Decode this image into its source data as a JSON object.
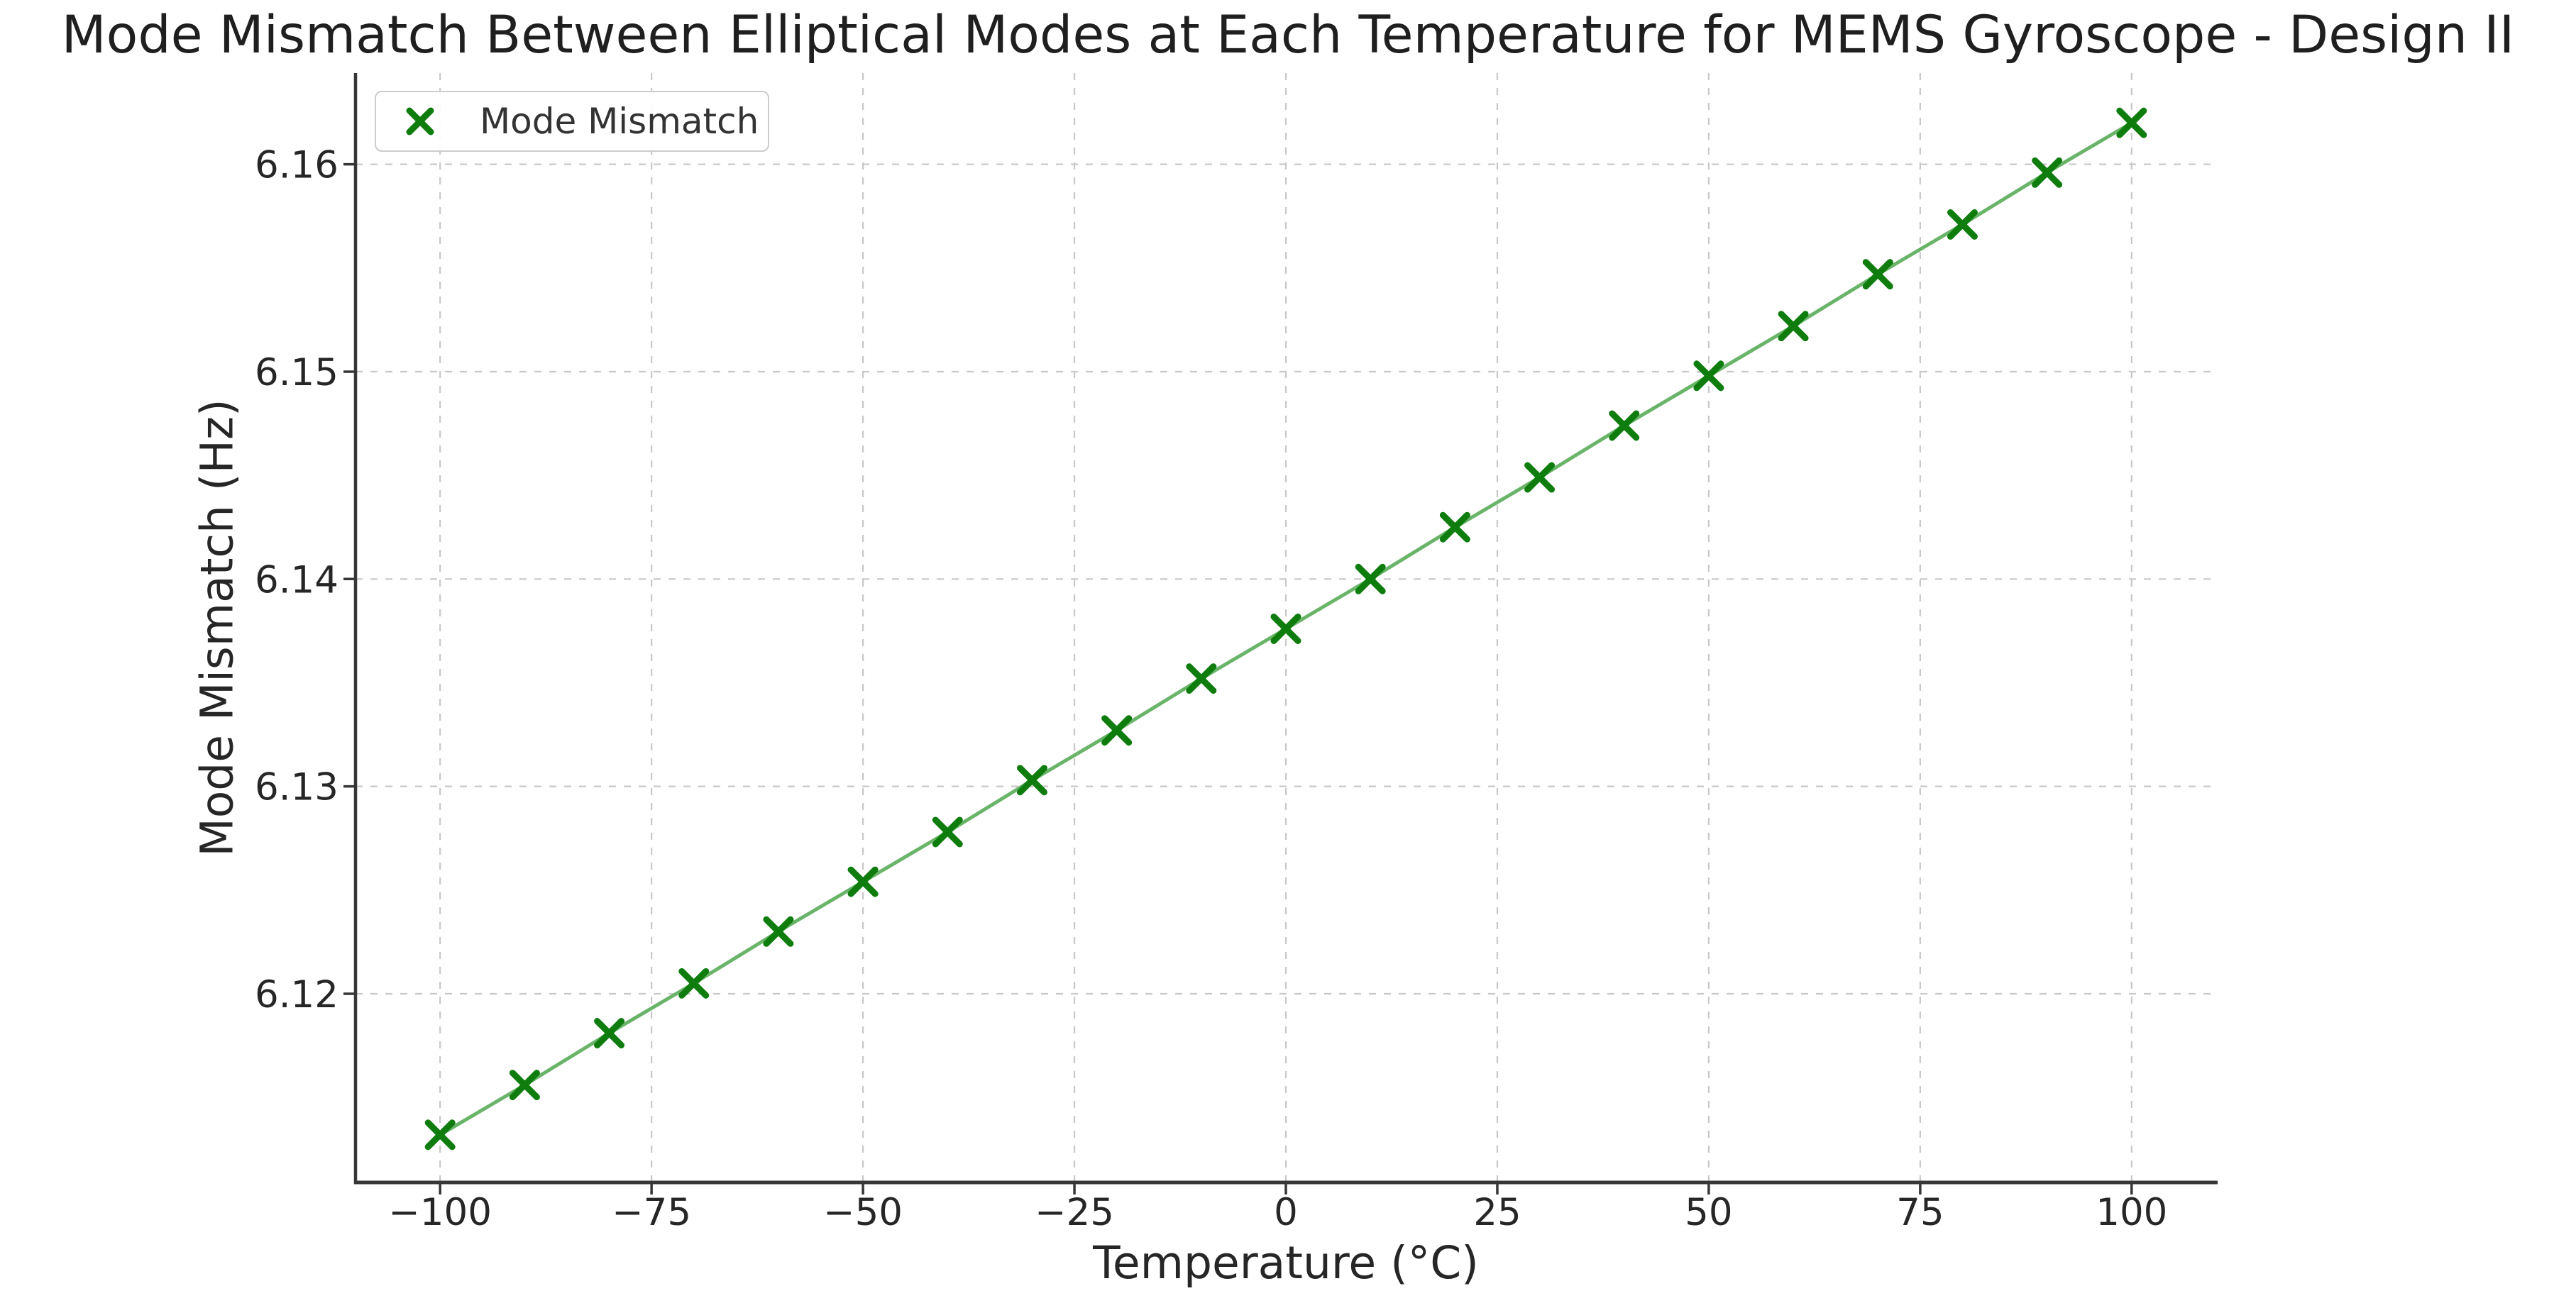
{
  "chart_data": {
    "type": "line",
    "title": "Mode Mismatch Between Elliptical Modes at Each Temperature for MEMS Gyroscope - Design II",
    "xlabel": "Temperature (°C)",
    "ylabel": "Mode Mismatch (Hz)",
    "series": [
      {
        "name": "Mode Mismatch",
        "marker": "x",
        "x": [
          -100,
          -90,
          -80,
          -70,
          -60,
          -50,
          -40,
          -30,
          -20,
          -10,
          0,
          10,
          20,
          30,
          40,
          50,
          60,
          70,
          80,
          90,
          100
        ],
        "values": [
          6.1132,
          6.1156,
          6.1181,
          6.1205,
          6.123,
          6.1254,
          6.1278,
          6.1303,
          6.1327,
          6.1352,
          6.1376,
          6.14,
          6.1425,
          6.1449,
          6.1474,
          6.1498,
          6.1522,
          6.1547,
          6.1571,
          6.1596,
          6.162
        ]
      }
    ],
    "xlim": [
      -110,
      110
    ],
    "ylim": [
      6.1109,
      6.1644
    ],
    "xticks": [
      -100,
      -75,
      -50,
      -25,
      0,
      25,
      50,
      75,
      100
    ],
    "xtick_labels": [
      "−100",
      "−75",
      "−50",
      "−25",
      "0",
      "25",
      "50",
      "75",
      "100"
    ],
    "yticks": [
      6.12,
      6.13,
      6.14,
      6.15,
      6.16
    ],
    "ytick_labels": [
      "6.12",
      "6.13",
      "6.14",
      "6.15",
      "6.16"
    ],
    "grid": true,
    "grid_style": "dashed",
    "legend_position": "upper left",
    "legend": {
      "label": "Mode Mismatch"
    },
    "colors": {
      "marker": "#0e7d0e",
      "line": "#69b469",
      "grid": "#c8c8c8",
      "spine": "#363636",
      "tick_text": "#262626",
      "title_text": "#1f1f1f",
      "legend_border": "#cccccc"
    }
  }
}
